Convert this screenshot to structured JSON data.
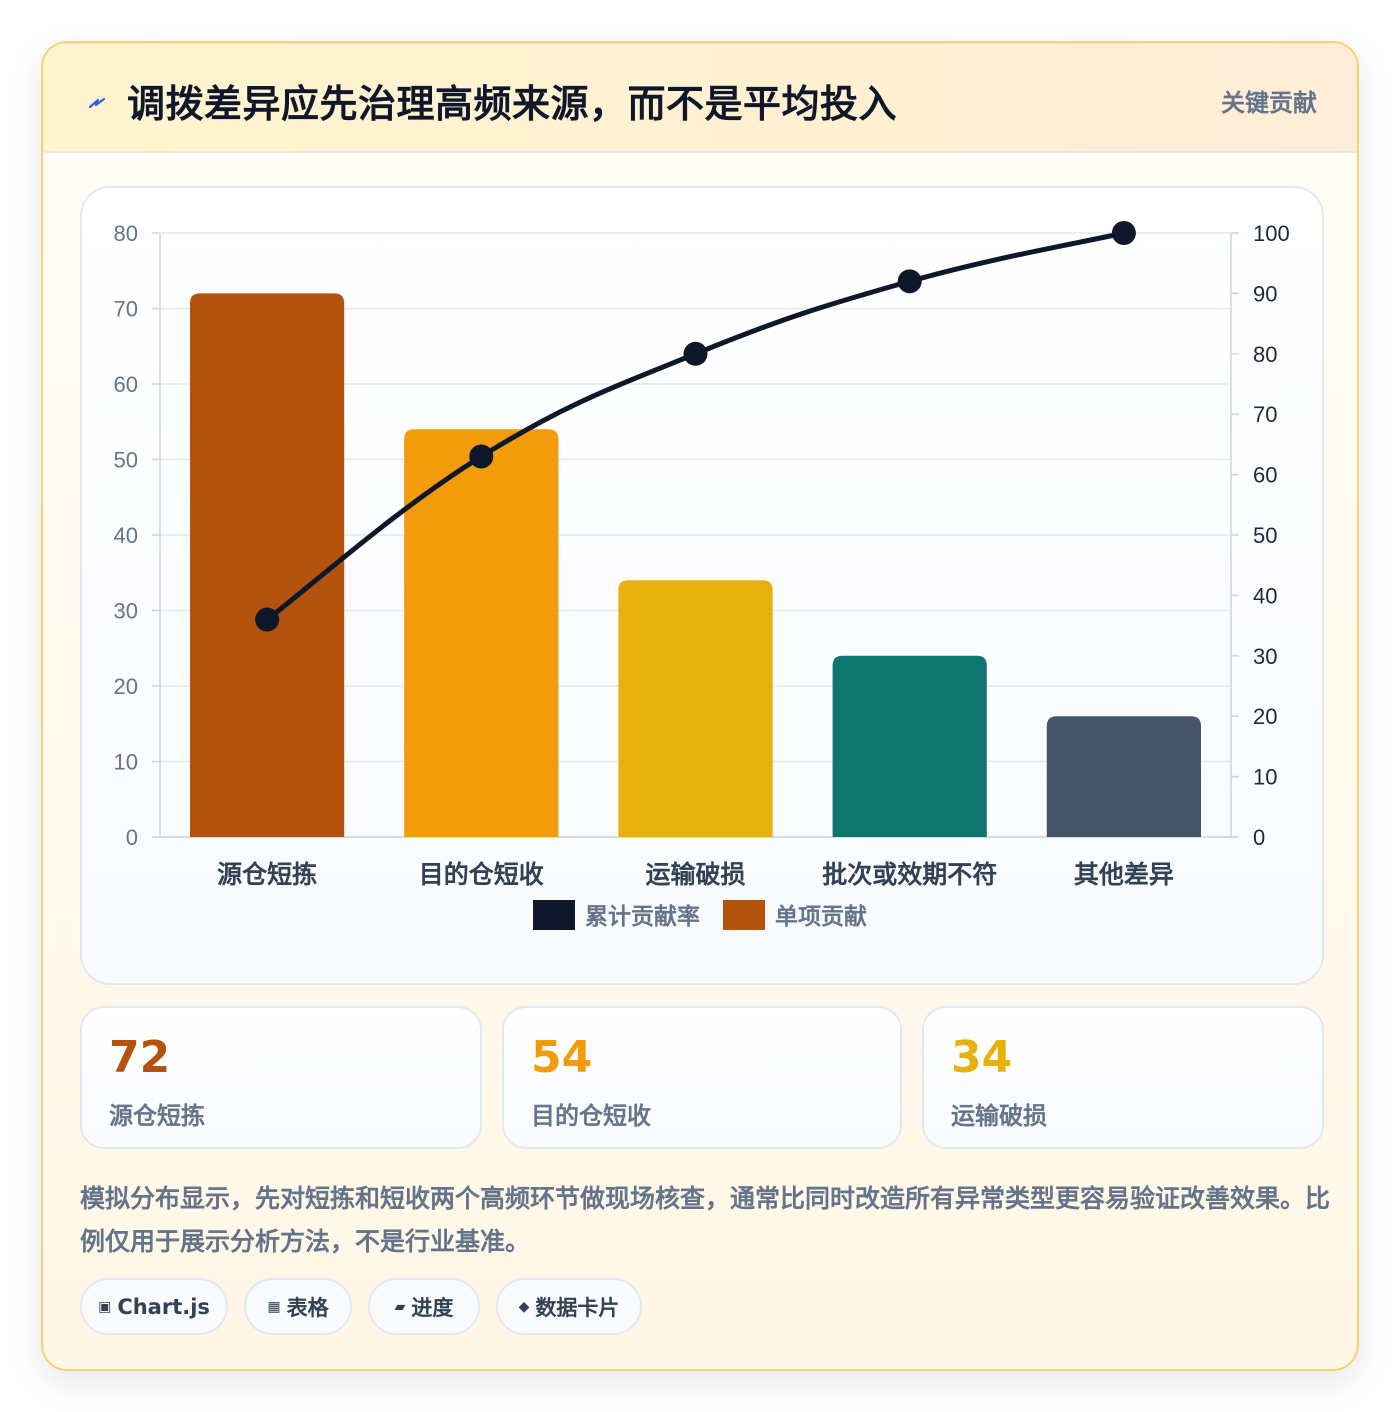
{
  "header": {
    "title": "调拨差异应先治理高频来源，而不是平均投入",
    "tag": "关键贡献",
    "icon": "bolt-icon"
  },
  "chart_data": {
    "type": "bar",
    "categories": [
      "源仓短拣",
      "目的仓短收",
      "运输破损",
      "批次或效期不符",
      "其他差异"
    ],
    "series": [
      {
        "name": "单项贡献",
        "type": "bar",
        "values": [
          72,
          54,
          34,
          24,
          16
        ],
        "colors": [
          "#b4530d",
          "#f29c0b",
          "#e6b10c",
          "#0f766e",
          "#475569"
        ],
        "axis": "left"
      },
      {
        "name": "累计贡献率",
        "type": "line",
        "values": [
          36,
          63,
          80,
          92,
          100
        ],
        "color": "#0f172a",
        "axis": "right"
      }
    ],
    "ylim": [
      0,
      80
    ],
    "y_ticks": [
      "0",
      "10",
      "20",
      "30",
      "40",
      "50",
      "60",
      "70",
      "80"
    ],
    "y2lim": [
      0,
      100
    ],
    "y2_ticks": [
      "0",
      "10",
      "20",
      "30",
      "40",
      "50",
      "60",
      "70",
      "80",
      "90",
      "100"
    ],
    "legend": [
      "累计贡献率",
      "单项贡献"
    ],
    "legend_position": "bottom",
    "grid": true
  },
  "stats": [
    {
      "value": "72",
      "label": "源仓短拣",
      "color": "#b4530d"
    },
    {
      "value": "54",
      "label": "目的仓短收",
      "color": "#f29c0b"
    },
    {
      "value": "34",
      "label": "运输破损",
      "color": "#e6b10c"
    }
  ],
  "note": "模拟分布显示，先对短拣和短收两个高频环节做现场核查，通常比同时改造所有异常类型更容易验证改善效果。比例仅用于展示分析方法，不是行业基准。",
  "pills": [
    {
      "icon": "▣",
      "label": "Chart.js"
    },
    {
      "icon": "▦",
      "label": "表格"
    },
    {
      "icon": "▰",
      "label": "进度"
    },
    {
      "icon": "◆",
      "label": "数据卡片"
    }
  ]
}
